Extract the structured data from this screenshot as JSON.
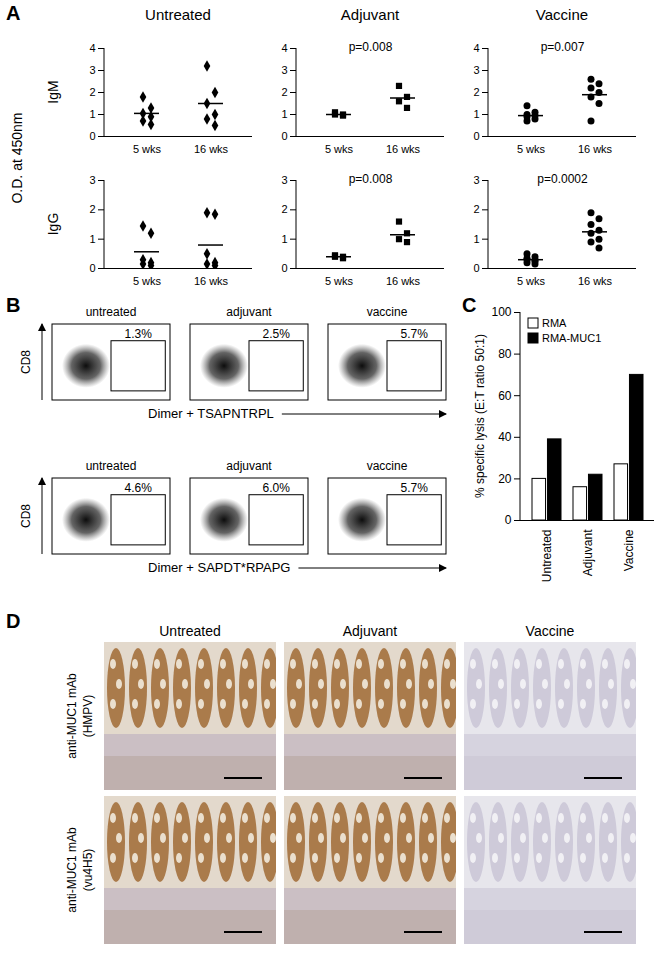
{
  "chart_data": [
    {
      "panel": "A",
      "type": "scatter",
      "y_label": "O.D. at 450nm",
      "categories": [
        "5 wks",
        "16 wks"
      ],
      "color": "#000000",
      "columns": [
        {
          "title": "Untreated",
          "marker": "diamond"
        },
        {
          "title": "Adjuvant",
          "marker": "square"
        },
        {
          "title": "Vaccine",
          "marker": "circle"
        }
      ],
      "rows": [
        {
          "label": "IgM",
          "ylim": [
            0,
            4
          ],
          "yticks": [
            0,
            1,
            2,
            3,
            4
          ],
          "subplots": [
            {
              "values": [
                [
                  1.8,
                  1.3,
                  1.05,
                  0.9,
                  0.7,
                  0.55
                ],
                [
                  3.2,
                  2.0,
                  1.5,
                  1.0,
                  0.8,
                  0.5
                ]
              ],
              "means": [
                1.05,
                1.5
              ]
            },
            {
              "values": [
                [
                  1.1,
                  1.0,
                  1.0,
                  0.95
                ],
                [
                  2.3,
                  1.8,
                  1.6,
                  1.3
                ]
              ],
              "means": [
                1.0,
                1.75
              ],
              "annotation": "p=0.008"
            },
            {
              "values": [
                [
                  1.4,
                  1.1,
                  1.0,
                  0.95,
                  0.9,
                  0.8,
                  0.7
                ],
                [
                  2.6,
                  2.4,
                  2.2,
                  2.0,
                  1.8,
                  1.5,
                  0.7
                ]
              ],
              "means": [
                0.95,
                1.9
              ],
              "annotation": "p=0.007"
            }
          ]
        },
        {
          "label": "IgG",
          "ylim": [
            0,
            3
          ],
          "yticks": [
            0,
            1,
            2,
            3
          ],
          "subplots": [
            {
              "values": [
                [
                  1.45,
                  1.2,
                  0.3,
                  0.2,
                  0.15,
                  0.1
                ],
                [
                  1.9,
                  1.85,
                  0.5,
                  0.2,
                  0.15,
                  0.1
                ]
              ],
              "means": [
                0.57,
                0.8
              ]
            },
            {
              "values": [
                [
                  0.45,
                  0.4,
                  0.4,
                  0.35
                ],
                [
                  1.6,
                  1.2,
                  1.0,
                  0.9
                ]
              ],
              "means": [
                0.4,
                1.15
              ],
              "annotation": "p=0.008"
            },
            {
              "values": [
                [
                  0.5,
                  0.4,
                  0.35,
                  0.3,
                  0.3,
                  0.25,
                  0.2,
                  0.15
                ],
                [
                  1.9,
                  1.7,
                  1.5,
                  1.3,
                  1.2,
                  1.0,
                  0.9,
                  0.7
                ]
              ],
              "means": [
                0.3,
                1.25
              ],
              "annotation": "p=0.0002"
            }
          ]
        }
      ]
    },
    {
      "panel": "B",
      "type": "flow_cytometry",
      "groups": [
        "untreated",
        "adjuvant",
        "vaccine"
      ],
      "y_label": "CD8",
      "rows": [
        {
          "x_label": "Dimer + TSAPNTRPL",
          "values": [
            1.3,
            2.5,
            5.7
          ],
          "value_labels": [
            "1.3%",
            "2.5%",
            "5.7%"
          ]
        },
        {
          "x_label": "Dimer + SAPDT*RPAPG",
          "values": [
            4.6,
            6.0,
            5.7
          ],
          "value_labels": [
            "4.6%",
            "6.0%",
            "5.7%"
          ]
        }
      ]
    },
    {
      "panel": "C",
      "type": "bar",
      "categories": [
        "Untreated",
        "Adjuvant",
        "Vaccine"
      ],
      "y_label": "% specific lysis (E:T ratio 50:1)",
      "ylim": [
        0,
        100
      ],
      "yticks": [
        0,
        20,
        40,
        60,
        80,
        100
      ],
      "legend": "top-left",
      "series": [
        {
          "name": "RMA",
          "color": "#ffffff",
          "values": [
            20,
            16,
            27
          ]
        },
        {
          "name": "RMA-MUC1",
          "color": "#000000",
          "values": [
            39,
            22,
            70
          ]
        }
      ]
    },
    {
      "panel": "D",
      "type": "image_grid",
      "columns": [
        "Untreated",
        "Adjuvant",
        "Vaccine"
      ],
      "rows": [
        [
          "anti-MUC1 mAb",
          "(HMPV)"
        ],
        [
          "anti-MUC1 mAb",
          "(vu4H5)"
        ]
      ]
    }
  ]
}
